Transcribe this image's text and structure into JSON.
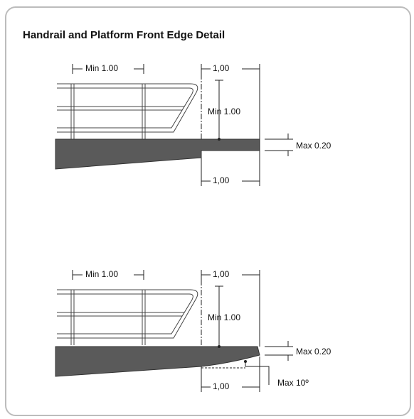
{
  "title": "Handrail and Platform Front Edge Detail",
  "details": [
    {
      "post_spacing": "Min 1.00",
      "top_width": "1,00",
      "rail_height": "Min 1.00",
      "edge_height": "Max 0.20",
      "bottom_width": "1,00"
    },
    {
      "post_spacing": "Min 1.00",
      "top_width": "1,00",
      "rail_height": "Min 1.00",
      "edge_height": "Max 0.20",
      "bottom_width": "1,00",
      "slope": "Max 10º"
    }
  ]
}
